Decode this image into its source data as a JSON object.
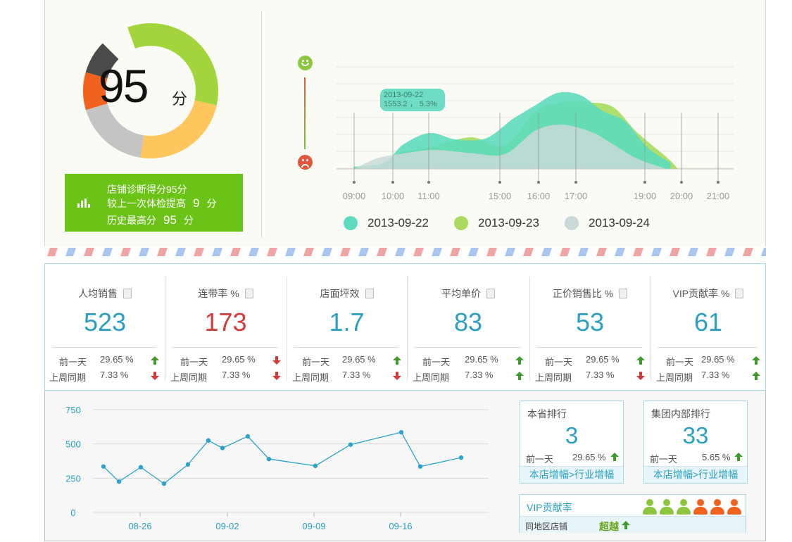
{
  "score": {
    "value": "95",
    "unit": "分"
  },
  "gauge": {
    "segments": [
      {
        "value": 34,
        "color": "#a2d53c"
      },
      {
        "value": 24,
        "color": "#ffc65d"
      },
      {
        "value": 18,
        "color": "#c4c4c4"
      },
      {
        "value": 9,
        "color": "#f2621f"
      },
      {
        "value": 8,
        "color": "#4a4a4a"
      },
      {
        "value": 7,
        "color": "#fbfbf6"
      }
    ]
  },
  "diagnosis": {
    "line1": "店铺诊断得分95分",
    "line2_pre": "较上一次体检提高",
    "line2_num": "9",
    "line2_post": "分",
    "line3_pre": "历史最高分",
    "line3_num": "95",
    "line3_post": "分"
  },
  "tooltip": {
    "date": "2013-09-22",
    "value": "1553.2 ， 5.3%"
  },
  "chart_data": [
    {
      "type": "area",
      "categories": [
        "09:00",
        "10:00",
        "11:00",
        "15:00",
        "16:00",
        "17:00",
        "19:00",
        "20:00",
        "21:00"
      ],
      "series": [
        {
          "name": "2013-09-22",
          "color": "#5edbbd",
          "points": [
            [
              0,
              2
            ],
            [
              0.8,
              6
            ],
            [
              1.3,
              23
            ],
            [
              2,
              34
            ],
            [
              2.7,
              28
            ],
            [
              3.5,
              29
            ],
            [
              4.2,
              47
            ],
            [
              4.8,
              60
            ],
            [
              5.4,
              72
            ],
            [
              6.0,
              70
            ],
            [
              6.6,
              55
            ],
            [
              7.2,
              45
            ],
            [
              7.8,
              20
            ],
            [
              8.4,
              6
            ]
          ]
        },
        {
          "name": "2013-09-23",
          "color": "#a9db5e",
          "points": [
            [
              0.6,
              0
            ],
            [
              1.2,
              15
            ],
            [
              2,
              20
            ],
            [
              3.1,
              30
            ],
            [
              4,
              22
            ],
            [
              4.8,
              54
            ],
            [
              5.5,
              63
            ],
            [
              6.3,
              63
            ],
            [
              6.9,
              58
            ],
            [
              7.5,
              35
            ],
            [
              8.3,
              11
            ],
            [
              8.6,
              0
            ]
          ]
        },
        {
          "name": "2013-09-24",
          "color": "#c9dad8",
          "points": [
            [
              0,
              0
            ],
            [
              0.6,
              10
            ],
            [
              1.2,
              14
            ],
            [
              2.1,
              18
            ],
            [
              3.1,
              15
            ],
            [
              4,
              14
            ],
            [
              4.8,
              36
            ],
            [
              5.5,
              42
            ],
            [
              6.3,
              35
            ],
            [
              6.8,
              25
            ],
            [
              7.5,
              10
            ],
            [
              8.3,
              0
            ]
          ]
        }
      ],
      "legend": [
        "2013-09-22",
        "2013-09-23",
        "2013-09-24"
      ],
      "ylim": [
        0,
        100
      ]
    },
    {
      "type": "line",
      "x_labels": [
        "08-26",
        "09-02",
        "09-09",
        "09-16"
      ],
      "yticks": [
        "750",
        "500",
        "250",
        "0"
      ],
      "ylim": [
        0,
        750
      ],
      "values": [
        335,
        225,
        330,
        210,
        350,
        525,
        470,
        555,
        390,
        340,
        495,
        585,
        335,
        400
      ],
      "color": "#2ea4cc"
    }
  ],
  "kpis": [
    {
      "title": "人均销售",
      "value": "523",
      "red": false,
      "prev_label": "前一天",
      "prev_pct": "29.65 %",
      "prev_dir": "up",
      "week_label": "上周同期",
      "week_pct": "7.33 %",
      "week_dir": "down"
    },
    {
      "title": "连带率 %",
      "value": "173",
      "red": true,
      "prev_label": "前一天",
      "prev_pct": "29.65 %",
      "prev_dir": "down",
      "week_label": "上周同期",
      "week_pct": "7.33 %",
      "week_dir": "down"
    },
    {
      "title": "店面坪效",
      "value": "1.7",
      "red": false,
      "prev_label": "前一天",
      "prev_pct": "29.65 %",
      "prev_dir": "up",
      "week_label": "上周同期",
      "week_pct": "7.33 %",
      "week_dir": "down"
    },
    {
      "title": "平均单价",
      "value": "83",
      "red": false,
      "prev_label": "前一天",
      "prev_pct": "29.65 %",
      "prev_dir": "up",
      "week_label": "上周同期",
      "week_pct": "7.33 %",
      "week_dir": "up"
    },
    {
      "title": "正价销售比 %",
      "value": "53",
      "red": false,
      "prev_label": "前一天",
      "prev_pct": "29.65 %",
      "prev_dir": "up",
      "week_label": "上周同期",
      "week_pct": "7.33 %",
      "week_dir": "down"
    },
    {
      "title": "VIP贡献率 %",
      "value": "61",
      "red": false,
      "prev_label": "前一天",
      "prev_pct": "29.65 %",
      "prev_dir": "up",
      "week_label": "上周同期",
      "week_pct": "7.33 %",
      "week_dir": "up"
    }
  ],
  "rank_province": {
    "title": "本省排行",
    "value": "3",
    "prev_label": "前一天",
    "pct": "29.65 %",
    "footer": "本店增幅>行业增幅"
  },
  "rank_group": {
    "title": "集团内部排行",
    "value": "33",
    "prev_label": "前一天",
    "pct": "5.65 %",
    "footer": "本店增幅>行业增幅"
  },
  "vip": {
    "title": "VIP贡献率",
    "local_label": "同地区店铺",
    "status": "超越",
    "people_colors": [
      "#8dc63f",
      "#8dc63f",
      "#8dc63f",
      "#f2621f",
      "#f2621f",
      "#f2621f"
    ]
  },
  "colors": {
    "up": "#3f9a2b",
    "down": "#d53a3a",
    "accent": "#2a9fc1"
  }
}
